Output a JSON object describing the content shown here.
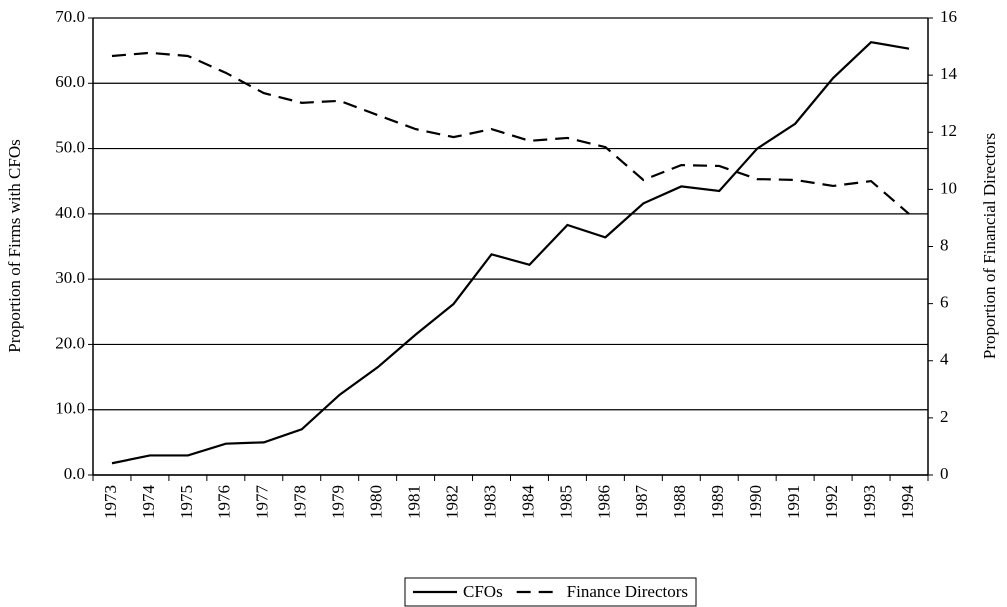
{
  "chart_data": {
    "type": "line",
    "y_label": "Proportion of Firms with CFOs",
    "y2_label": "Proportion of Financial Directors",
    "categories": [
      "1973",
      "1974",
      "1975",
      "1976",
      "1977",
      "1978",
      "1979",
      "1980",
      "1981",
      "1982",
      "1983",
      "1984",
      "1985",
      "1986",
      "1987",
      "1988",
      "1989",
      "1990",
      "1991",
      "1992",
      "1993",
      "1994"
    ],
    "series": [
      {
        "name": "CFOs",
        "color": "#000000",
        "line_style": "solid",
        "axis": "y",
        "values": [
          1.8,
          3.0,
          3.0,
          4.8,
          5.0,
          7.0,
          12.3,
          16.5,
          21.5,
          26.2,
          33.8,
          32.2,
          38.3,
          36.4,
          41.6,
          44.2,
          43.5,
          50.0,
          53.8,
          60.8,
          66.3,
          65.3
        ]
      },
      {
        "name": "Finance Directors",
        "color": "#000000",
        "line_style": "dashed",
        "axis": "y2",
        "values": [
          14.67,
          14.78,
          14.67,
          14.08,
          13.37,
          13.03,
          13.1,
          12.6,
          12.11,
          11.83,
          12.11,
          11.7,
          11.8,
          11.48,
          10.33,
          10.85,
          10.82,
          10.36,
          10.33,
          10.12,
          10.29,
          9.14
        ]
      }
    ],
    "ylim": [
      0,
      70
    ],
    "yticks": [
      {
        "value": 0,
        "label": "0.0"
      },
      {
        "value": 10,
        "label": "10.0"
      },
      {
        "value": 20,
        "label": "20.0"
      },
      {
        "value": 30,
        "label": "30.0"
      },
      {
        "value": 40,
        "label": "40.0"
      },
      {
        "value": 50,
        "label": "50.0"
      },
      {
        "value": 60,
        "label": "60.0"
      },
      {
        "value": 70,
        "label": "70.0"
      }
    ],
    "y2lim": [
      0,
      16
    ],
    "y2ticks": [
      0,
      2,
      4,
      6,
      8,
      10,
      12,
      14,
      16
    ],
    "grid": true,
    "legend": "bottom"
  }
}
